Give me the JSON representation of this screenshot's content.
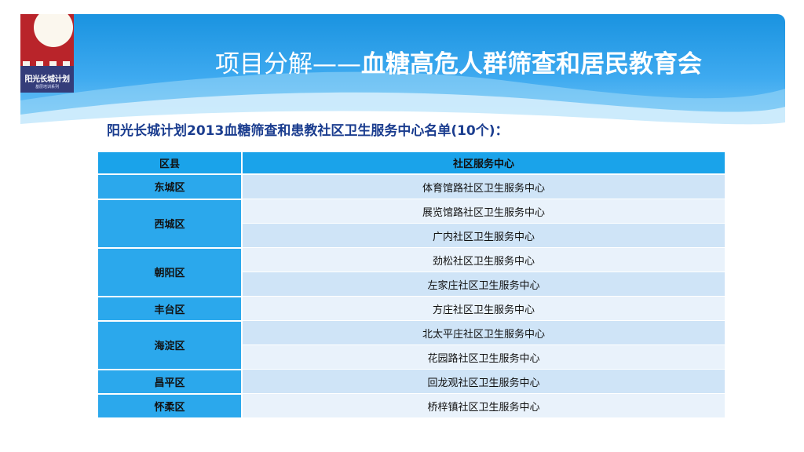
{
  "logo": {
    "name": "阳光长城计划",
    "subtitle": "基层培训系列"
  },
  "header": {
    "title_light": "项目分解——",
    "title_bold": "血糖高危人群筛查和居民教育会"
  },
  "subtitle": "阳光长城计划2013血糖筛查和患教社区卫生服务中心名单(10个)：",
  "table": {
    "headers": [
      "区县",
      "社区服务中心"
    ],
    "districts": [
      "东城区",
      "西城区",
      "朝阳区",
      "丰台区",
      "海淀区",
      "昌平区",
      "怀柔区"
    ],
    "centers": [
      "体育馆路社区卫生服务中心",
      "展览馆路社区卫生服务中心",
      "广内社区卫生服务中心",
      "劲松社区卫生服务中心",
      "左家庄社区卫生服务中心",
      "方庄社区卫生服务中心",
      "北太平庄社区卫生服务中心",
      "花园路社区卫生服务中心",
      "回龙观社区卫生服务中心",
      "桥梓镇社区卫生服务中心"
    ]
  },
  "colors": {
    "banner": "#1a93e0",
    "header_cell": "#1aa3ea",
    "district_cell": "#2ba8ec",
    "row_a": "#cfe4f7",
    "row_b": "#e9f2fb",
    "subtitle_text": "#1b3d8f"
  }
}
